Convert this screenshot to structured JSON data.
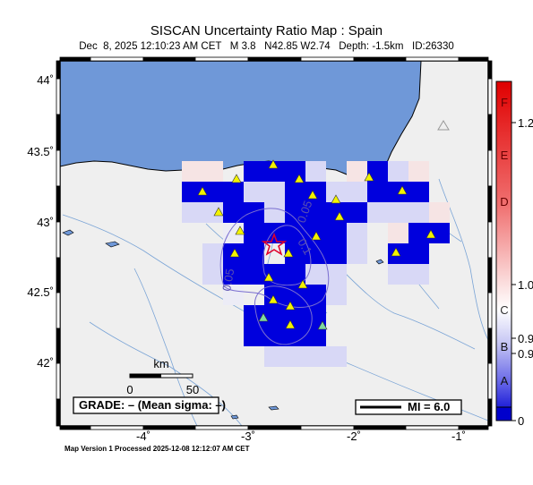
{
  "title": "SISCAN Uncertainty Ratio Map : Spain",
  "subtitle": "Dec  8, 2025 12:10:23 AM CET   M 3.8   N42.85 W2.74   Depth: -1.5km   ID:26330",
  "footer": "Map Version 1 Processed 2025-12-08 12:12:07 AM CET",
  "map": {
    "lon_ticks": [
      "-4˚",
      "-3˚",
      "-2˚",
      "-1˚"
    ],
    "lat_ticks": [
      "44˚",
      "43.5˚",
      "43˚",
      "42.5˚",
      "42˚"
    ],
    "contour_labels": [
      "0.05",
      "0.1",
      "0.05"
    ],
    "scale_label": "km",
    "scale_ticks": [
      "0",
      "50"
    ],
    "grade_label": "GRADE: – (Mean sigma: –)",
    "mi_label": "MI = 6.0",
    "colors": {
      "sea": "#6f98d8",
      "land": "#efefef",
      "cell_blue": "#0000dd",
      "epicenter": "#e0002a",
      "station": "#f2f200"
    }
  },
  "colorbar": {
    "grades": [
      "F",
      "E",
      "D",
      "C",
      "B",
      "A"
    ],
    "values": [
      "1.2",
      "1.0",
      "0.9",
      "0.9",
      "0"
    ],
    "colors": {
      "high": "#e00000",
      "low": "#0000cc"
    }
  }
}
